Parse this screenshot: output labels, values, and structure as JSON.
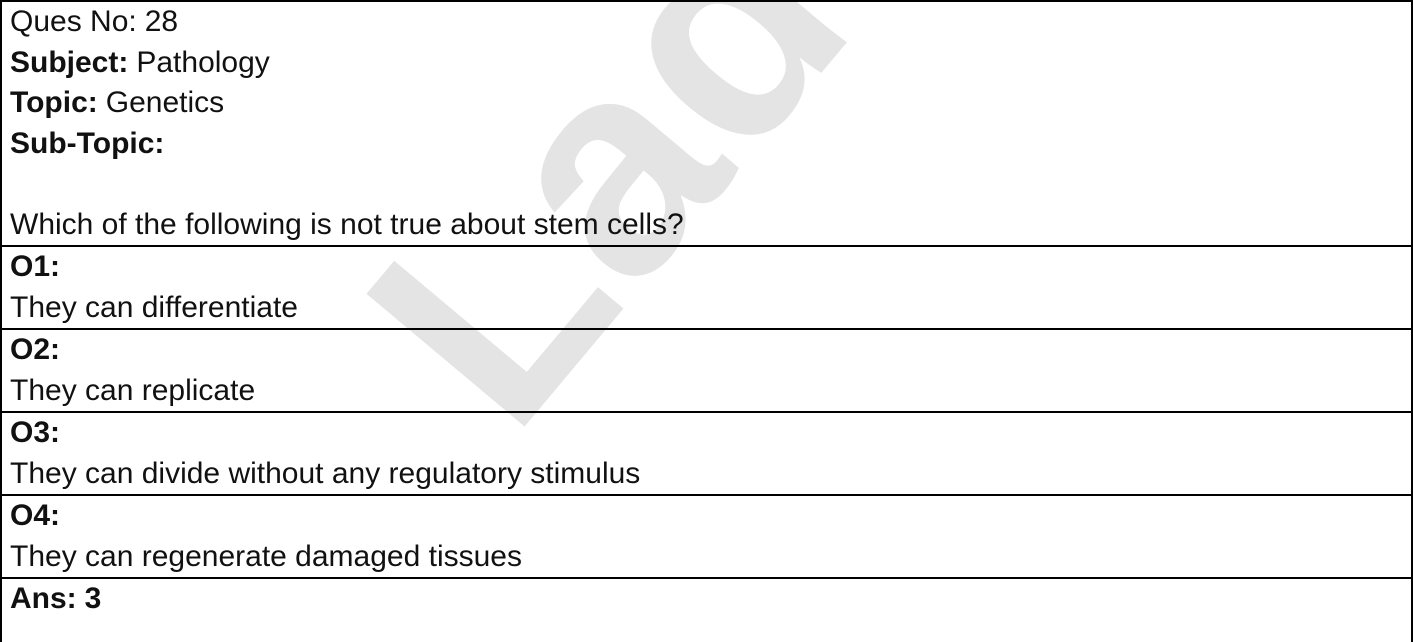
{
  "watermark": "Ladder",
  "header": {
    "question_no": {
      "label": "Ques No:",
      "value": 28
    },
    "subject": {
      "label": "Subject:",
      "value": "Pathology"
    },
    "topic": {
      "label": "Topic:",
      "value": "Genetics"
    },
    "sub_topic": {
      "label": "Sub-Topic:"
    }
  },
  "question": "Which of the following is not true about stem cells?",
  "options": [
    {
      "label": "O1:",
      "text": "They can differentiate"
    },
    {
      "label": "O2:",
      "text": "They can replicate"
    },
    {
      "label": "O3:",
      "text": "They can divide without any regulatory stimulus"
    },
    {
      "label": "O4:",
      "text": "They can regenerate damaged tissues"
    }
  ],
  "answer": {
    "label": "Ans:",
    "value": 3
  }
}
